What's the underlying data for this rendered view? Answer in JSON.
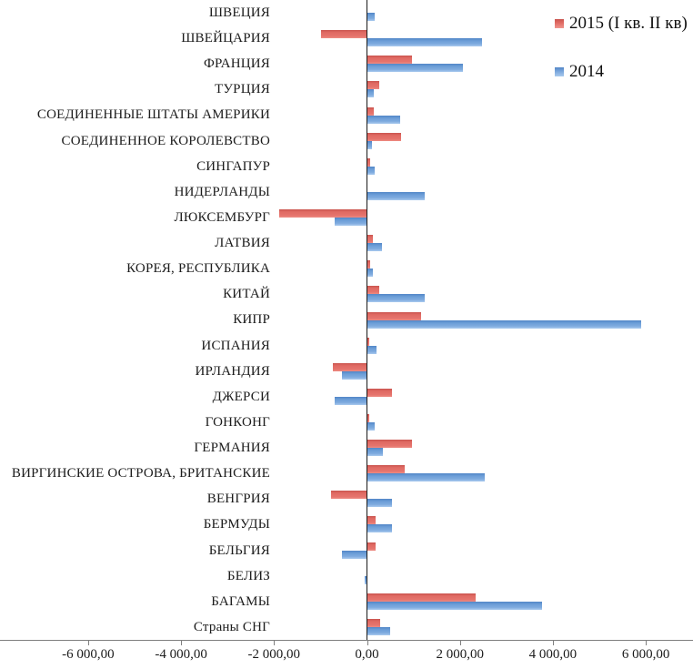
{
  "chart_data": {
    "type": "bar",
    "orientation": "horizontal",
    "title": "",
    "xlabel": "",
    "ylabel": "",
    "grid": false,
    "legend_position": "top-right",
    "categories": [
      "ШВЕЦИЯ",
      "ШВЕЙЦАРИЯ",
      "ФРАНЦИЯ",
      "ТУРЦИЯ",
      "СОЕДИНЕННЫЕ ШТАТЫ АМЕРИКИ",
      "СОЕДИНЕННОЕ КОРОЛЕВСТВО",
      "СИНГАПУР",
      "НИДЕРЛАНДЫ",
      "ЛЮКСЕМБУРГ",
      "ЛАТВИЯ",
      "КОРЕЯ, РЕСПУБЛИКА",
      "КИТАЙ",
      "КИПР",
      "ИСПАНИЯ",
      "ИРЛАНДИЯ",
      "ДЖЕРСИ",
      "ГОНКОНГ",
      "ГЕРМАНИЯ",
      "ВИРГИНСКИЕ ОСТРОВА, БРИТАНСКИЕ",
      "ВЕНГРИЯ",
      "БЕРМУДЫ",
      "БЕЛЬГИЯ",
      "БЕЛИЗ",
      "БАГАМЫ",
      "Страны СНГ"
    ],
    "series": [
      {
        "name": "2015 (I кв. II кв)",
        "color": "#e3706a",
        "values": [
          0,
          -980,
          960,
          270,
          150,
          740,
          70,
          0,
          -1890,
          120,
          60,
          270,
          1160,
          40,
          -730,
          540,
          40,
          970,
          820,
          -780,
          190,
          190,
          0,
          2330,
          280
        ]
      },
      {
        "name": "2014",
        "color": "#74a3dc",
        "values": [
          170,
          2470,
          2070,
          140,
          710,
          100,
          170,
          1250,
          -700,
          330,
          120,
          1250,
          5900,
          200,
          -530,
          -700,
          170,
          350,
          2540,
          530,
          530,
          -530,
          -50,
          3760,
          490
        ]
      }
    ],
    "x_axis": {
      "xlim": [
        -6000,
        6000
      ],
      "tick_values": [
        -6000,
        -4000,
        -2000,
        0,
        2000,
        4000,
        6000
      ],
      "tick_labels": [
        "-6 000,00",
        "-4 000,00",
        "-2 000,00",
        "0,00",
        "2 000,00",
        "4 000,00",
        "6 000,00"
      ]
    }
  }
}
